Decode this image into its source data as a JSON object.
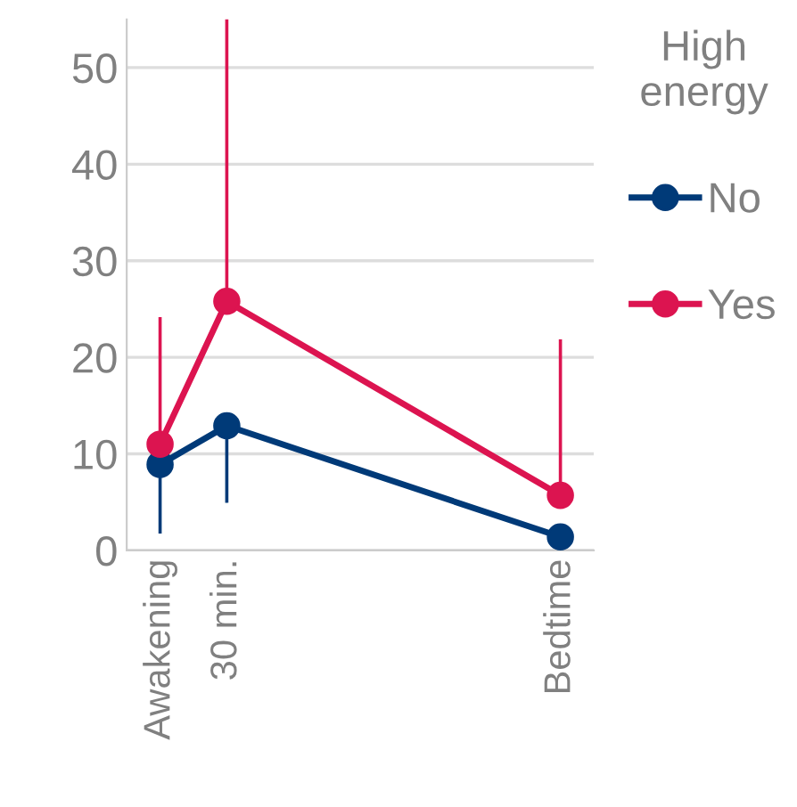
{
  "chart_data": {
    "type": "line",
    "legend_title": "High\nenergy",
    "categories": [
      "Awakening",
      "30 min.",
      null,
      null,
      null,
      null,
      "Bedtime"
    ],
    "ylim": [
      0,
      55
    ],
    "yticks": [
      0,
      10,
      20,
      30,
      40,
      50
    ],
    "grid": "y",
    "legend": "right",
    "marker": "circle",
    "line_style": "solid",
    "series": [
      {
        "name": "No",
        "color": "#003a78",
        "values": [
          8.9,
          12.9,
          null,
          null,
          null,
          null,
          1.4
        ],
        "errors": [
          [
            1.9,
            8.9
          ],
          [
            5.1,
            12.9
          ],
          null,
          null,
          null,
          null,
          null
        ]
      },
      {
        "name": "Yes",
        "color": "#dc1450",
        "values": [
          11.0,
          25.8,
          null,
          null,
          null,
          null,
          5.7
        ],
        "errors": [
          [
            11.0,
            24.0
          ],
          [
            25.8,
            55
          ],
          null,
          null,
          null,
          null,
          [
            5.7,
            21.7
          ]
        ]
      }
    ]
  }
}
